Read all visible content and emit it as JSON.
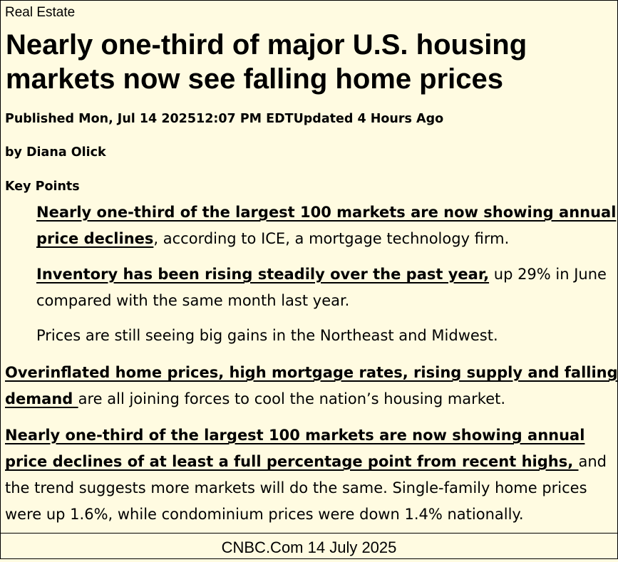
{
  "section": "Real Estate",
  "headline": "Nearly one-third of major U.S. housing markets now see falling home prices",
  "published": "Published Mon, Jul 14 202512:07 PM EDTUpdated 4 Hours Ago",
  "byline": "by Diana Olick",
  "key_points_label": "Key Points",
  "key_points": [
    {
      "bold": "Nearly one-third of the largest 100 markets are now showing annual price declines",
      "rest": ", according to ICE, a mortgage technology firm."
    },
    {
      "bold": "Inventory has been rising steadily over the past year,",
      "rest": " up 29% in June compared with the same month last year."
    },
    {
      "bold": "",
      "rest": "Prices are still seeing big gains in the Northeast and Midwest."
    }
  ],
  "paragraphs": [
    {
      "bold": "Overinflated home prices, high mortgage rates, rising supply and falling demand ",
      "rest": "are all joining forces to cool the nation’s housing market."
    },
    {
      "bold": "Nearly one-third of the largest 100 markets are now showing annual price declines of at least a full percentage point from recent highs, ",
      "rest": "and the trend suggests more markets will do the same. Single-family home prices were up 1.6%, while condominium prices were down 1.4% nationally."
    }
  ],
  "footer": "CNBC.Com  14 July 2025"
}
